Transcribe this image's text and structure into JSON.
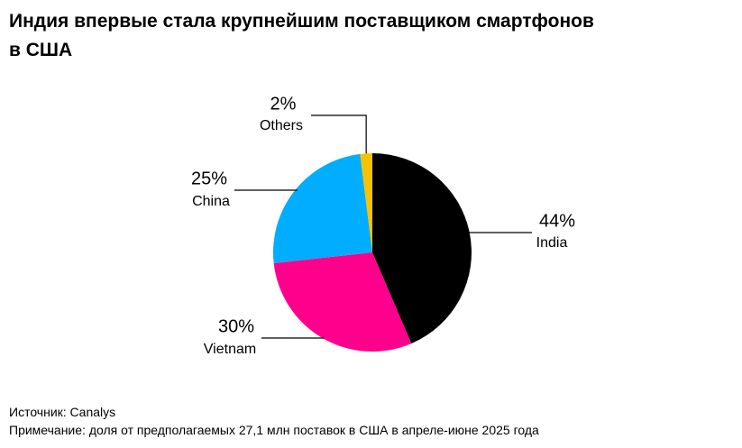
{
  "chart_data": {
    "type": "pie",
    "title": "Индия впервые стала крупнейшим поставщиком смартфонов в США",
    "categories": [
      "India",
      "Vietnam",
      "China",
      "Others"
    ],
    "values": [
      44,
      30,
      25,
      2
    ],
    "value_labels": [
      "44%",
      "30%",
      "25%",
      "2%"
    ],
    "colors": [
      "#000000",
      "#ff008c",
      "#00adff",
      "#f7c200"
    ],
    "source": "Источник: Canalys",
    "note": "Примечание: доля от предполагаемых 27,1 млн поставок в США в апреле-июне 2025 года"
  }
}
